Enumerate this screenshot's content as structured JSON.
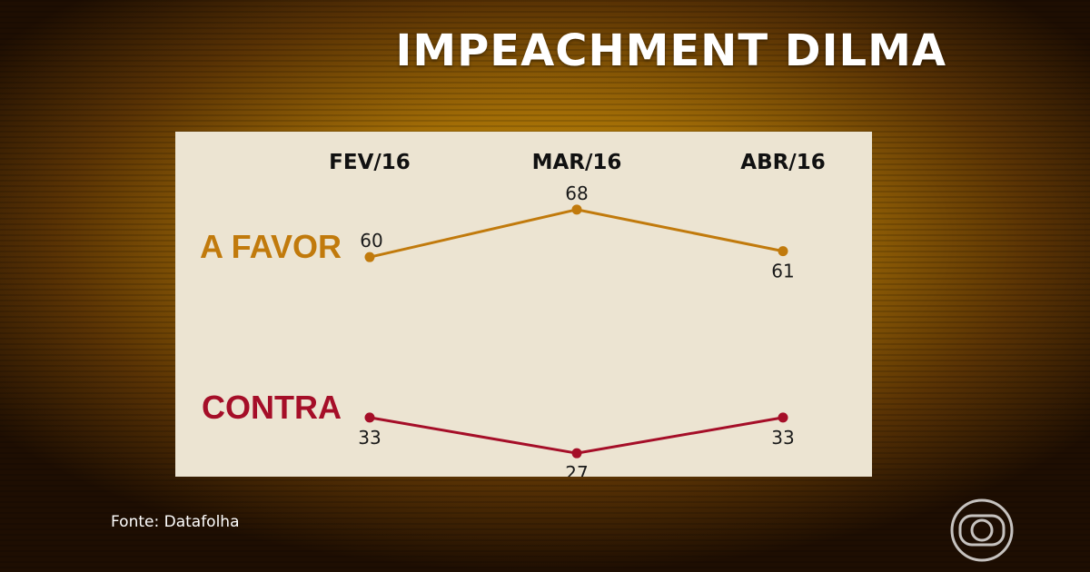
{
  "title": "IMPEACHMENT DILMA",
  "source": "Fonte: Datafolha",
  "logo": {
    "icon": "globo-logo-icon"
  },
  "colors": {
    "favor": "#c17a0c",
    "contra": "#a50e28",
    "panel": "#ece4d2"
  },
  "chart_data": {
    "type": "line",
    "categories": [
      "FEV/16",
      "MAR/16",
      "ABR/16"
    ],
    "ylim": [
      20,
      75
    ],
    "series": [
      {
        "name": "A FAVOR",
        "values": [
          60,
          68,
          61
        ],
        "color": "#c17a0c",
        "label_pos": [
          "above",
          "above",
          "below"
        ]
      },
      {
        "name": "CONTRA",
        "values": [
          33,
          27,
          33
        ],
        "color": "#a50e28",
        "label_pos": [
          "below",
          "below",
          "below"
        ]
      }
    ]
  }
}
